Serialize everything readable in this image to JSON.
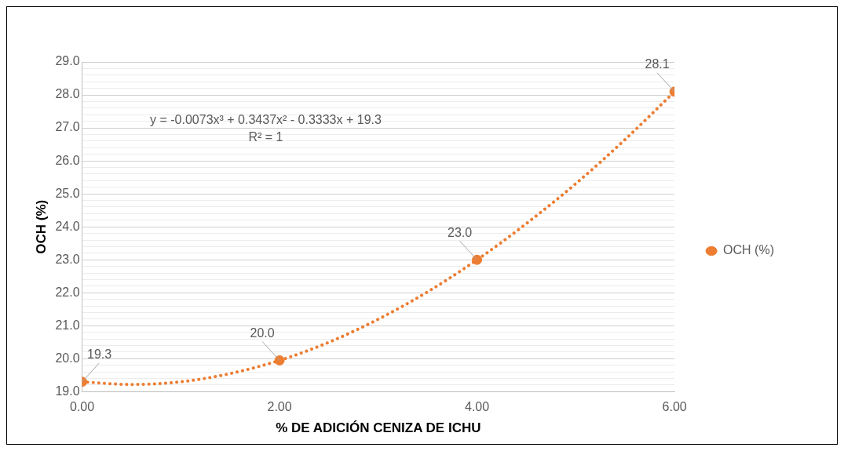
{
  "chart_data": {
    "type": "scatter",
    "xlabel": "% DE ADICIÓN CENIZA DE ICHU",
    "ylabel": "OCH (%)",
    "xlim": [
      0,
      6
    ],
    "xticks": [
      {
        "value": 0,
        "label": "0.00"
      },
      {
        "value": 2,
        "label": "2.00"
      },
      {
        "value": 4,
        "label": "4.00"
      },
      {
        "value": 6,
        "label": "6.00"
      }
    ],
    "ylim": [
      19,
      29
    ],
    "yticks": [
      {
        "value": 19,
        "label": "19.0"
      },
      {
        "value": 19.2,
        "label": null
      },
      {
        "value": 19.4,
        "label": null
      },
      {
        "value": 19.6,
        "label": null
      },
      {
        "value": 19.8,
        "label": null
      },
      {
        "value": 20,
        "label": "20.0"
      },
      {
        "value": 20.2,
        "label": null
      },
      {
        "value": 20.4,
        "label": null
      },
      {
        "value": 20.6,
        "label": null
      },
      {
        "value": 20.8,
        "label": null
      },
      {
        "value": 21,
        "label": "21.0"
      },
      {
        "value": 21.2,
        "label": null
      },
      {
        "value": 21.4,
        "label": null
      },
      {
        "value": 21.6,
        "label": null
      },
      {
        "value": 21.8,
        "label": null
      },
      {
        "value": 22,
        "label": "22.0"
      },
      {
        "value": 22.2,
        "label": null
      },
      {
        "value": 22.4,
        "label": null
      },
      {
        "value": 22.6,
        "label": null
      },
      {
        "value": 22.8,
        "label": null
      },
      {
        "value": 23,
        "label": "23.0"
      },
      {
        "value": 23.2,
        "label": null
      },
      {
        "value": 23.4,
        "label": null
      },
      {
        "value": 23.6,
        "label": null
      },
      {
        "value": 23.8,
        "label": null
      },
      {
        "value": 24,
        "label": "24.0"
      },
      {
        "value": 24.2,
        "label": null
      },
      {
        "value": 24.4,
        "label": null
      },
      {
        "value": 24.6,
        "label": null
      },
      {
        "value": 24.8,
        "label": null
      },
      {
        "value": 25,
        "label": "25.0"
      },
      {
        "value": 25.2,
        "label": null
      },
      {
        "value": 25.4,
        "label": null
      },
      {
        "value": 25.6,
        "label": null
      },
      {
        "value": 25.8,
        "label": null
      },
      {
        "value": 26,
        "label": "26.0"
      },
      {
        "value": 26.2,
        "label": null
      },
      {
        "value": 26.4,
        "label": null
      },
      {
        "value": 26.6,
        "label": null
      },
      {
        "value": 26.8,
        "label": null
      },
      {
        "value": 27,
        "label": "27.0"
      },
      {
        "value": 27.2,
        "label": null
      },
      {
        "value": 27.4,
        "label": null
      },
      {
        "value": 27.6,
        "label": null
      },
      {
        "value": 27.8,
        "label": null
      },
      {
        "value": 28,
        "label": "28.0"
      },
      {
        "value": 28.2,
        "label": null
      },
      {
        "value": 28.4,
        "label": null
      },
      {
        "value": 28.6,
        "label": null
      },
      {
        "value": 28.8,
        "label": null
      },
      {
        "value": 29,
        "label": "29.0"
      }
    ],
    "grid": "y",
    "legend": "right",
    "marker": "circle",
    "series": [
      {
        "type": "line",
        "color": "#ed7d31",
        "line_style": "dotted",
        "marker": "none",
        "x": [
          0,
          0.5,
          1,
          1.5,
          2,
          2.5,
          3,
          3.5,
          4,
          4.5,
          5,
          5.5,
          6
        ],
        "values": [
          19.3,
          19.22,
          19.3,
          19.55,
          19.95,
          20.5,
          21.2,
          22.03,
          23.0,
          24.1,
          25.31,
          26.65,
          28.1
        ]
      },
      {
        "type": "scatter",
        "name": "OCH (%)",
        "color": "#ed7d31",
        "x": [
          0,
          2,
          4,
          6
        ],
        "values": [
          19.3,
          19.95,
          23.0,
          28.1
        ],
        "value_labels": [
          "19.3",
          "20.0",
          "23.0",
          "28.1"
        ]
      }
    ],
    "annotations": [
      "y = -0.0073x³ + 0.3437x² - 0.3333x + 19.3",
      "R² = 1"
    ]
  }
}
